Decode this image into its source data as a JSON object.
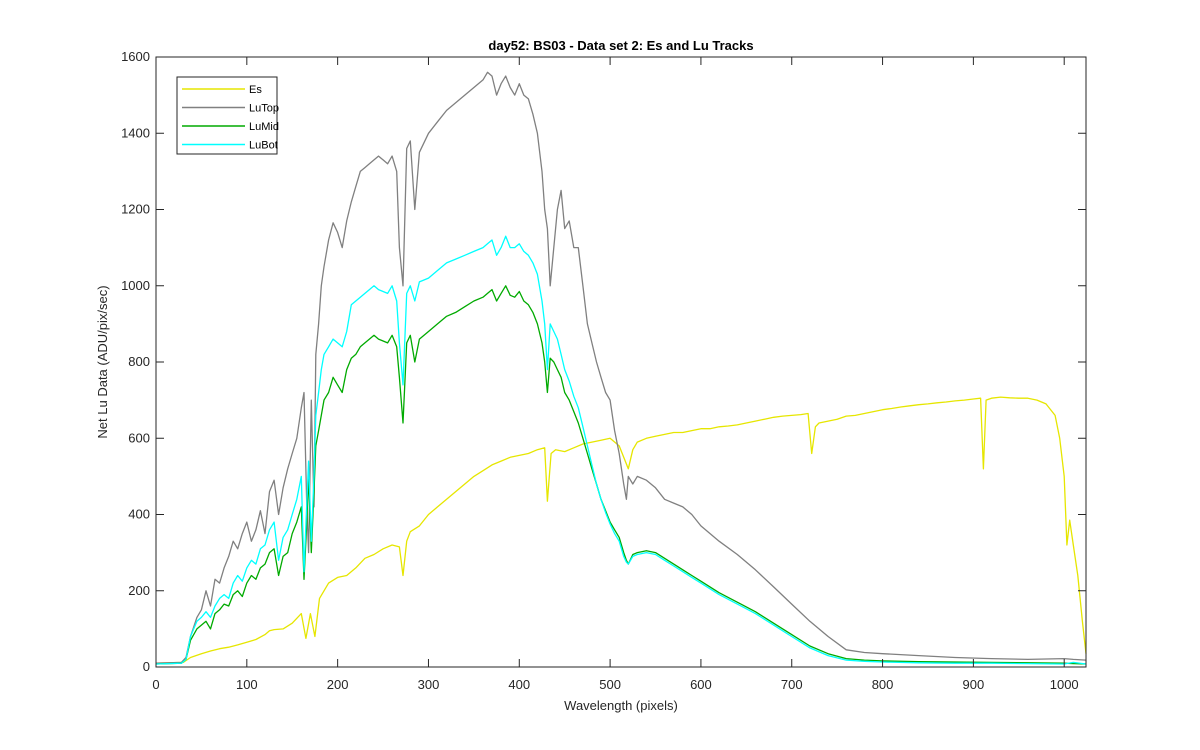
{
  "chart_data": {
    "type": "line",
    "title": "day52: BS03 - Data set 2: Es and Lu Tracks",
    "xlabel": "Wavelength (pixels)",
    "ylabel": "Net Lu Data (ADU/pix/sec)",
    "xlim": [
      0,
      1024
    ],
    "ylim": [
      0,
      1600
    ],
    "xticks": [
      0,
      100,
      200,
      300,
      400,
      500,
      600,
      700,
      800,
      900,
      1000
    ],
    "yticks": [
      0,
      200,
      400,
      600,
      800,
      1000,
      1200,
      1400,
      1600
    ],
    "grid": false,
    "legend_position": "top-left",
    "series": [
      {
        "name": "Es",
        "color": "#e6e600",
        "x": [
          0,
          30,
          38,
          50,
          60,
          70,
          80,
          90,
          100,
          110,
          120,
          125,
          130,
          140,
          150,
          160,
          165,
          170,
          175,
          180,
          190,
          200,
          210,
          220,
          230,
          240,
          250,
          260,
          268,
          272,
          276,
          280,
          290,
          300,
          310,
          320,
          330,
          340,
          350,
          360,
          370,
          380,
          390,
          400,
          410,
          420,
          428,
          431,
          435,
          440,
          450,
          460,
          470,
          480,
          490,
          500,
          510,
          520,
          525,
          530,
          540,
          550,
          560,
          570,
          580,
          590,
          600,
          610,
          620,
          630,
          640,
          650,
          660,
          670,
          680,
          690,
          700,
          710,
          718,
          722,
          726,
          730,
          740,
          750,
          760,
          770,
          780,
          790,
          800,
          810,
          820,
          830,
          840,
          850,
          860,
          870,
          880,
          890,
          900,
          908,
          911,
          914,
          920,
          930,
          940,
          950,
          960,
          970,
          980,
          990,
          995,
          1000,
          1003,
          1006,
          1010,
          1015,
          1020,
          1024
        ],
        "y": [
          10,
          12,
          25,
          35,
          42,
          48,
          52,
          58,
          65,
          72,
          85,
          95,
          98,
          100,
          115,
          140,
          75,
          140,
          80,
          180,
          220,
          235,
          240,
          260,
          285,
          295,
          310,
          320,
          315,
          240,
          330,
          355,
          370,
          400,
          420,
          440,
          460,
          480,
          500,
          515,
          530,
          540,
          550,
          555,
          560,
          570,
          575,
          435,
          560,
          570,
          565,
          575,
          585,
          590,
          595,
          600,
          580,
          520,
          570,
          590,
          600,
          605,
          610,
          615,
          615,
          620,
          625,
          625,
          630,
          632,
          635,
          640,
          645,
          650,
          655,
          658,
          660,
          662,
          665,
          560,
          630,
          640,
          645,
          650,
          658,
          660,
          665,
          670,
          675,
          678,
          682,
          685,
          688,
          690,
          693,
          695,
          698,
          700,
          703,
          705,
          520,
          700,
          705,
          708,
          706,
          705,
          705,
          700,
          690,
          660,
          600,
          500,
          320,
          385,
          320,
          240,
          120,
          35
        ]
      },
      {
        "name": "LuTop",
        "color": "#808080",
        "x": [
          0,
          28,
          33,
          38,
          45,
          50,
          55,
          60,
          65,
          70,
          75,
          80,
          85,
          90,
          95,
          100,
          105,
          110,
          115,
          120,
          125,
          130,
          135,
          140,
          145,
          150,
          155,
          160,
          163,
          166,
          168,
          171,
          174,
          176,
          179,
          182,
          185,
          190,
          195,
          200,
          205,
          210,
          215,
          220,
          225,
          230,
          235,
          240,
          245,
          250,
          255,
          260,
          265,
          268,
          272,
          276,
          280,
          285,
          290,
          300,
          310,
          320,
          330,
          340,
          350,
          360,
          365,
          370,
          375,
          380,
          385,
          390,
          395,
          400,
          405,
          410,
          415,
          420,
          425,
          428,
          431,
          434,
          438,
          442,
          446,
          450,
          455,
          460,
          465,
          470,
          475,
          480,
          485,
          490,
          495,
          500,
          505,
          510,
          515,
          518,
          520,
          525,
          530,
          540,
          550,
          560,
          570,
          580,
          590,
          600,
          620,
          640,
          660,
          680,
          700,
          720,
          740,
          760,
          780,
          800,
          840,
          880,
          920,
          960,
          1000,
          1010,
          1024
        ],
        "y": [
          10,
          12,
          25,
          80,
          130,
          150,
          200,
          160,
          230,
          220,
          260,
          290,
          330,
          310,
          350,
          380,
          330,
          360,
          410,
          350,
          460,
          490,
          400,
          470,
          520,
          560,
          600,
          680,
          720,
          420,
          300,
          700,
          420,
          820,
          900,
          1000,
          1050,
          1120,
          1165,
          1140,
          1100,
          1170,
          1220,
          1260,
          1300,
          1310,
          1320,
          1330,
          1340,
          1330,
          1320,
          1340,
          1300,
          1100,
          1000,
          1360,
          1380,
          1200,
          1350,
          1400,
          1430,
          1460,
          1480,
          1500,
          1520,
          1540,
          1560,
          1550,
          1500,
          1530,
          1550,
          1520,
          1500,
          1530,
          1500,
          1490,
          1450,
          1400,
          1300,
          1200,
          1150,
          1000,
          1100,
          1200,
          1250,
          1150,
          1170,
          1100,
          1100,
          1000,
          900,
          850,
          800,
          760,
          720,
          700,
          620,
          560,
          480,
          440,
          500,
          480,
          500,
          490,
          470,
          440,
          430,
          420,
          400,
          370,
          330,
          295,
          255,
          210,
          165,
          120,
          80,
          45,
          38,
          35,
          30,
          25,
          22,
          20,
          22,
          20,
          18
        ]
      },
      {
        "name": "LuMid",
        "color": "#00aa00",
        "x": [
          0,
          28,
          33,
          38,
          45,
          50,
          55,
          60,
          65,
          70,
          75,
          80,
          85,
          90,
          95,
          100,
          105,
          110,
          115,
          120,
          125,
          130,
          135,
          140,
          145,
          150,
          155,
          160,
          163,
          166,
          168,
          171,
          174,
          176,
          179,
          182,
          185,
          190,
          195,
          200,
          205,
          210,
          215,
          220,
          225,
          230,
          235,
          240,
          245,
          250,
          255,
          260,
          265,
          268,
          272,
          276,
          280,
          285,
          290,
          300,
          310,
          320,
          330,
          340,
          350,
          360,
          365,
          370,
          375,
          380,
          385,
          390,
          395,
          400,
          405,
          410,
          415,
          420,
          425,
          428,
          431,
          434,
          438,
          442,
          446,
          450,
          455,
          460,
          465,
          470,
          475,
          480,
          485,
          490,
          495,
          500,
          505,
          510,
          515,
          518,
          520,
          525,
          530,
          540,
          550,
          560,
          570,
          580,
          590,
          600,
          620,
          640,
          660,
          680,
          700,
          720,
          740,
          760,
          780,
          800,
          840,
          880,
          920,
          960,
          1000,
          1010,
          1024
        ],
        "y": [
          8,
          10,
          20,
          70,
          100,
          110,
          120,
          100,
          140,
          150,
          165,
          160,
          190,
          200,
          185,
          220,
          240,
          230,
          260,
          270,
          300,
          310,
          240,
          290,
          300,
          350,
          380,
          420,
          230,
          380,
          500,
          300,
          460,
          580,
          620,
          660,
          700,
          720,
          760,
          740,
          720,
          780,
          810,
          820,
          840,
          850,
          860,
          870,
          860,
          855,
          850,
          870,
          840,
          760,
          640,
          850,
          870,
          800,
          860,
          880,
          900,
          920,
          930,
          945,
          960,
          970,
          980,
          990,
          960,
          980,
          1000,
          975,
          970,
          985,
          960,
          950,
          930,
          900,
          850,
          800,
          720,
          810,
          800,
          780,
          760,
          720,
          700,
          670,
          640,
          600,
          560,
          520,
          480,
          440,
          410,
          380,
          360,
          340,
          300,
          280,
          270,
          295,
          300,
          305,
          300,
          285,
          270,
          255,
          240,
          225,
          195,
          170,
          145,
          115,
          85,
          55,
          35,
          22,
          18,
          16,
          14,
          13,
          12,
          11,
          10,
          9,
          8
        ]
      },
      {
        "name": "LuBot",
        "color": "#00ffff",
        "x": [
          0,
          28,
          33,
          38,
          45,
          50,
          55,
          60,
          65,
          70,
          75,
          80,
          85,
          90,
          95,
          100,
          105,
          110,
          115,
          120,
          125,
          130,
          135,
          140,
          145,
          150,
          155,
          160,
          163,
          166,
          168,
          171,
          174,
          176,
          179,
          182,
          185,
          190,
          195,
          200,
          205,
          210,
          215,
          220,
          225,
          230,
          235,
          240,
          245,
          250,
          255,
          260,
          265,
          268,
          272,
          276,
          280,
          285,
          290,
          300,
          310,
          320,
          330,
          340,
          350,
          360,
          365,
          370,
          375,
          380,
          385,
          390,
          395,
          400,
          405,
          410,
          415,
          420,
          425,
          428,
          431,
          434,
          438,
          442,
          446,
          450,
          455,
          460,
          465,
          470,
          475,
          480,
          485,
          490,
          495,
          500,
          505,
          510,
          515,
          518,
          520,
          525,
          530,
          540,
          550,
          560,
          570,
          580,
          590,
          600,
          620,
          640,
          660,
          680,
          700,
          720,
          740,
          760,
          780,
          800,
          840,
          880,
          920,
          960,
          1000,
          1010,
          1024
        ],
        "y": [
          8,
          10,
          20,
          80,
          120,
          130,
          145,
          130,
          160,
          180,
          190,
          180,
          220,
          240,
          225,
          260,
          280,
          270,
          310,
          320,
          360,
          380,
          280,
          340,
          360,
          400,
          440,
          500,
          250,
          430,
          540,
          330,
          500,
          660,
          720,
          780,
          820,
          840,
          860,
          850,
          840,
          880,
          950,
          960,
          970,
          980,
          990,
          1000,
          990,
          985,
          980,
          1000,
          960,
          850,
          740,
          980,
          1000,
          960,
          1010,
          1020,
          1040,
          1060,
          1070,
          1080,
          1090,
          1100,
          1110,
          1120,
          1080,
          1100,
          1130,
          1100,
          1100,
          1110,
          1090,
          1080,
          1060,
          1030,
          960,
          900,
          780,
          900,
          880,
          860,
          820,
          780,
          750,
          710,
          680,
          630,
          580,
          530,
          480,
          440,
          405,
          375,
          350,
          330,
          290,
          275,
          270,
          290,
          295,
          300,
          295,
          280,
          265,
          250,
          235,
          220,
          190,
          165,
          140,
          110,
          80,
          50,
          30,
          18,
          15,
          13,
          11,
          10,
          10,
          9,
          8,
          12,
          8
        ]
      }
    ]
  }
}
